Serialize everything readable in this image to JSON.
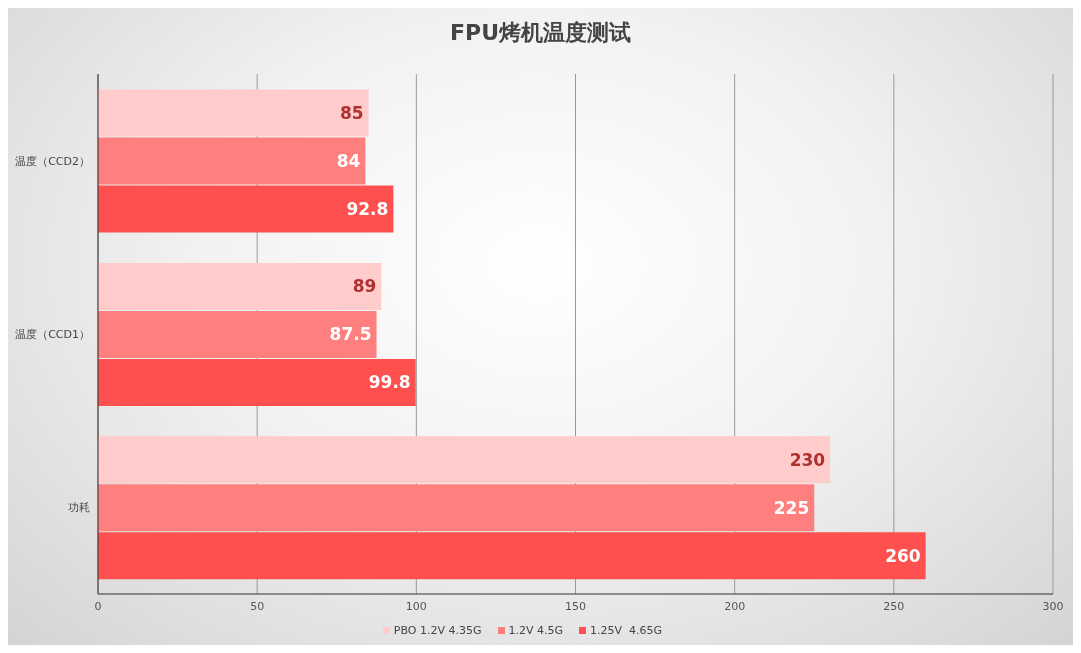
{
  "chart_data": {
    "type": "bar",
    "orientation": "horizontal",
    "title": "FPU烤机温度测试",
    "categories": [
      "温度（CCD2）",
      "温度（CCD1）",
      "功耗"
    ],
    "series": [
      {
        "name": "PBO 1.2V 4.35G",
        "color": "#ffcccb",
        "values": [
          85,
          89,
          230
        ]
      },
      {
        "name": "1.2V 4.5G",
        "color": "#ff7f7f",
        "values": [
          84,
          87.5,
          225
        ]
      },
      {
        "name": "1.25V  4.65G",
        "color": "#ff5050",
        "values": [
          92.8,
          99.8,
          260
        ]
      }
    ],
    "xlim": [
      0,
      300
    ],
    "xticks": [
      0,
      50,
      100,
      150,
      200,
      250,
      300
    ],
    "grid": "x",
    "legend": "bottom",
    "data_labels": true
  }
}
